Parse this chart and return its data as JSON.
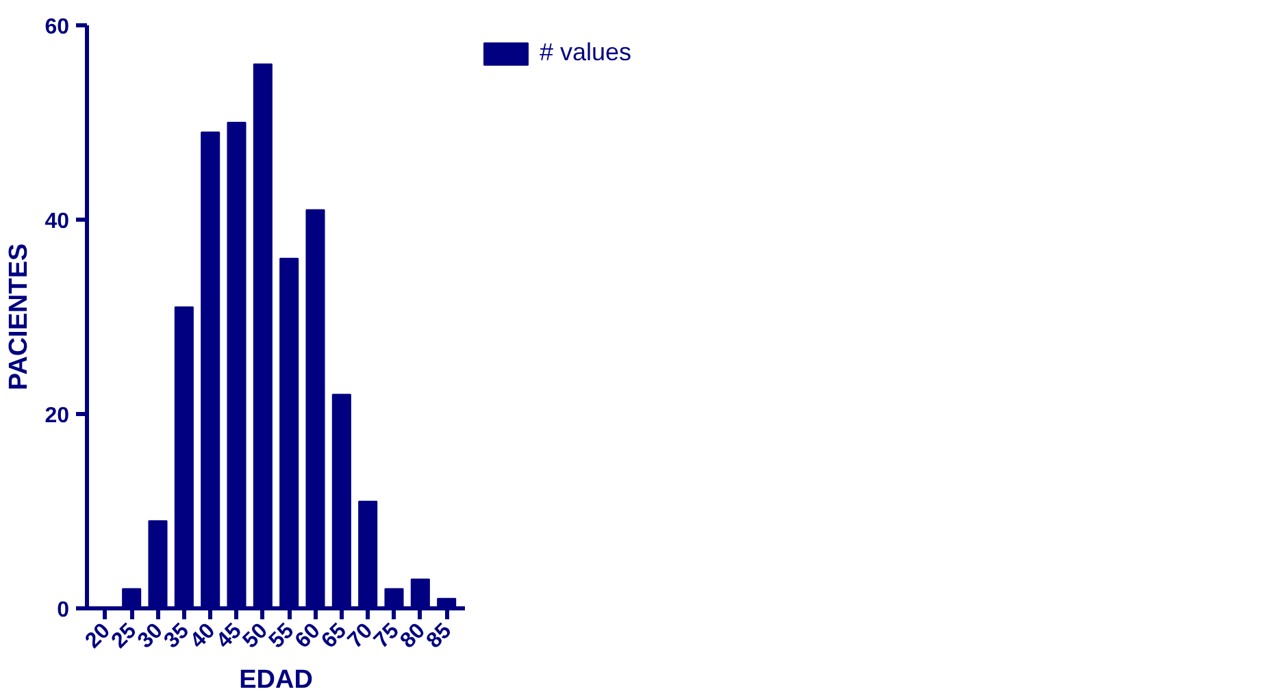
{
  "chart_data": {
    "type": "bar",
    "xlabel": "EDAD",
    "ylabel": "PACIENTES",
    "categories": [
      "20",
      "25",
      "30",
      "35",
      "40",
      "45",
      "50",
      "55",
      "60",
      "65",
      "70",
      "75",
      "80",
      "85"
    ],
    "series": [
      {
        "name": "# values",
        "color": "#000080",
        "values": [
          0,
          2,
          9,
          31,
          49,
          50,
          56,
          36,
          41,
          22,
          11,
          2,
          3,
          1
        ]
      }
    ],
    "ylim": [
      0,
      60
    ],
    "yticks": [
      0,
      20,
      40,
      60
    ],
    "grid": false,
    "legend": "top right"
  }
}
